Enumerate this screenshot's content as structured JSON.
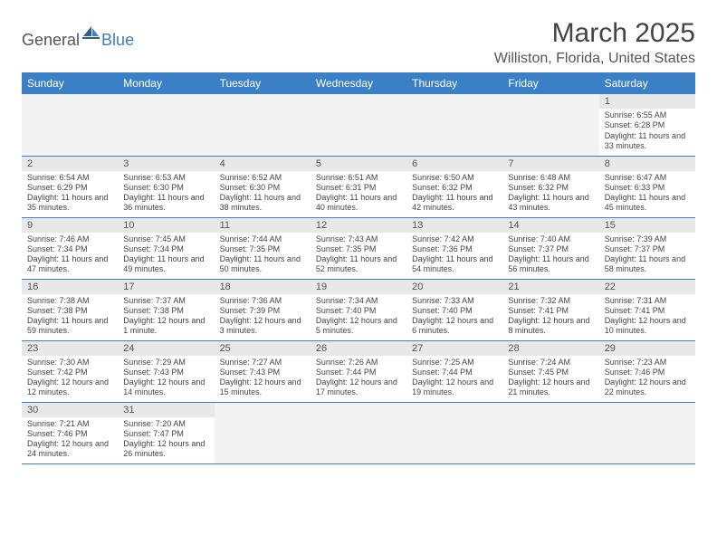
{
  "logo": {
    "word1": "General",
    "word2": "Blue"
  },
  "title": "March 2025",
  "location": "Williston, Florida, United States",
  "colors": {
    "header": "#3b7fc4",
    "daynum_bg": "#e8e8e8",
    "blank_bg": "#f3f3f3",
    "text": "#444444",
    "rule": "#3b7fc4"
  },
  "weekdays": [
    "Sunday",
    "Monday",
    "Tuesday",
    "Wednesday",
    "Thursday",
    "Friday",
    "Saturday"
  ],
  "weeks": [
    [
      null,
      null,
      null,
      null,
      null,
      null,
      {
        "n": "1",
        "sunrise": "Sunrise: 6:55 AM",
        "sunset": "Sunset: 6:28 PM",
        "day": "Daylight: 11 hours and 33 minutes."
      }
    ],
    [
      {
        "n": "2",
        "sunrise": "Sunrise: 6:54 AM",
        "sunset": "Sunset: 6:29 PM",
        "day": "Daylight: 11 hours and 35 minutes."
      },
      {
        "n": "3",
        "sunrise": "Sunrise: 6:53 AM",
        "sunset": "Sunset: 6:30 PM",
        "day": "Daylight: 11 hours and 36 minutes."
      },
      {
        "n": "4",
        "sunrise": "Sunrise: 6:52 AM",
        "sunset": "Sunset: 6:30 PM",
        "day": "Daylight: 11 hours and 38 minutes."
      },
      {
        "n": "5",
        "sunrise": "Sunrise: 6:51 AM",
        "sunset": "Sunset: 6:31 PM",
        "day": "Daylight: 11 hours and 40 minutes."
      },
      {
        "n": "6",
        "sunrise": "Sunrise: 6:50 AM",
        "sunset": "Sunset: 6:32 PM",
        "day": "Daylight: 11 hours and 42 minutes."
      },
      {
        "n": "7",
        "sunrise": "Sunrise: 6:48 AM",
        "sunset": "Sunset: 6:32 PM",
        "day": "Daylight: 11 hours and 43 minutes."
      },
      {
        "n": "8",
        "sunrise": "Sunrise: 6:47 AM",
        "sunset": "Sunset: 6:33 PM",
        "day": "Daylight: 11 hours and 45 minutes."
      }
    ],
    [
      {
        "n": "9",
        "sunrise": "Sunrise: 7:46 AM",
        "sunset": "Sunset: 7:34 PM",
        "day": "Daylight: 11 hours and 47 minutes."
      },
      {
        "n": "10",
        "sunrise": "Sunrise: 7:45 AM",
        "sunset": "Sunset: 7:34 PM",
        "day": "Daylight: 11 hours and 49 minutes."
      },
      {
        "n": "11",
        "sunrise": "Sunrise: 7:44 AM",
        "sunset": "Sunset: 7:35 PM",
        "day": "Daylight: 11 hours and 50 minutes."
      },
      {
        "n": "12",
        "sunrise": "Sunrise: 7:43 AM",
        "sunset": "Sunset: 7:35 PM",
        "day": "Daylight: 11 hours and 52 minutes."
      },
      {
        "n": "13",
        "sunrise": "Sunrise: 7:42 AM",
        "sunset": "Sunset: 7:36 PM",
        "day": "Daylight: 11 hours and 54 minutes."
      },
      {
        "n": "14",
        "sunrise": "Sunrise: 7:40 AM",
        "sunset": "Sunset: 7:37 PM",
        "day": "Daylight: 11 hours and 56 minutes."
      },
      {
        "n": "15",
        "sunrise": "Sunrise: 7:39 AM",
        "sunset": "Sunset: 7:37 PM",
        "day": "Daylight: 11 hours and 58 minutes."
      }
    ],
    [
      {
        "n": "16",
        "sunrise": "Sunrise: 7:38 AM",
        "sunset": "Sunset: 7:38 PM",
        "day": "Daylight: 11 hours and 59 minutes."
      },
      {
        "n": "17",
        "sunrise": "Sunrise: 7:37 AM",
        "sunset": "Sunset: 7:38 PM",
        "day": "Daylight: 12 hours and 1 minute."
      },
      {
        "n": "18",
        "sunrise": "Sunrise: 7:36 AM",
        "sunset": "Sunset: 7:39 PM",
        "day": "Daylight: 12 hours and 3 minutes."
      },
      {
        "n": "19",
        "sunrise": "Sunrise: 7:34 AM",
        "sunset": "Sunset: 7:40 PM",
        "day": "Daylight: 12 hours and 5 minutes."
      },
      {
        "n": "20",
        "sunrise": "Sunrise: 7:33 AM",
        "sunset": "Sunset: 7:40 PM",
        "day": "Daylight: 12 hours and 6 minutes."
      },
      {
        "n": "21",
        "sunrise": "Sunrise: 7:32 AM",
        "sunset": "Sunset: 7:41 PM",
        "day": "Daylight: 12 hours and 8 minutes."
      },
      {
        "n": "22",
        "sunrise": "Sunrise: 7:31 AM",
        "sunset": "Sunset: 7:41 PM",
        "day": "Daylight: 12 hours and 10 minutes."
      }
    ],
    [
      {
        "n": "23",
        "sunrise": "Sunrise: 7:30 AM",
        "sunset": "Sunset: 7:42 PM",
        "day": "Daylight: 12 hours and 12 minutes."
      },
      {
        "n": "24",
        "sunrise": "Sunrise: 7:29 AM",
        "sunset": "Sunset: 7:43 PM",
        "day": "Daylight: 12 hours and 14 minutes."
      },
      {
        "n": "25",
        "sunrise": "Sunrise: 7:27 AM",
        "sunset": "Sunset: 7:43 PM",
        "day": "Daylight: 12 hours and 15 minutes."
      },
      {
        "n": "26",
        "sunrise": "Sunrise: 7:26 AM",
        "sunset": "Sunset: 7:44 PM",
        "day": "Daylight: 12 hours and 17 minutes."
      },
      {
        "n": "27",
        "sunrise": "Sunrise: 7:25 AM",
        "sunset": "Sunset: 7:44 PM",
        "day": "Daylight: 12 hours and 19 minutes."
      },
      {
        "n": "28",
        "sunrise": "Sunrise: 7:24 AM",
        "sunset": "Sunset: 7:45 PM",
        "day": "Daylight: 12 hours and 21 minutes."
      },
      {
        "n": "29",
        "sunrise": "Sunrise: 7:23 AM",
        "sunset": "Sunset: 7:46 PM",
        "day": "Daylight: 12 hours and 22 minutes."
      }
    ],
    [
      {
        "n": "30",
        "sunrise": "Sunrise: 7:21 AM",
        "sunset": "Sunset: 7:46 PM",
        "day": "Daylight: 12 hours and 24 minutes."
      },
      {
        "n": "31",
        "sunrise": "Sunrise: 7:20 AM",
        "sunset": "Sunset: 7:47 PM",
        "day": "Daylight: 12 hours and 26 minutes."
      },
      null,
      null,
      null,
      null,
      null
    ]
  ]
}
